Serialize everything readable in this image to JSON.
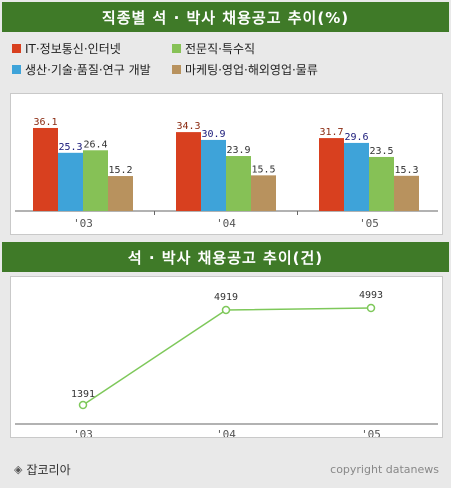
{
  "chart1": {
    "title": "직종별 석 · 박사 채용공고 추이(%)"
  },
  "chart2": {
    "title": "석 · 박사 채용공고 추이(건)"
  },
  "footer": {
    "left": "잡코리아",
    "right": "copyright datanews"
  },
  "colors": {
    "green_banner": "#3f7a28",
    "it": "#d8401f",
    "research": "#3ea3d9",
    "professional": "#86c156",
    "marketing": "#b8925e",
    "line": "#7ec85a"
  },
  "chart_data": [
    {
      "type": "bar",
      "title": "직종별 석 · 박사 채용공고 추이(%)",
      "categories": [
        "'03",
        "'04",
        "'05"
      ],
      "series": [
        {
          "name": "IT·정보통신·인터넷",
          "color": "#d8401f",
          "values": [
            36.1,
            34.3,
            31.7
          ]
        },
        {
          "name": "생산·기술·품질·연구 개발",
          "color": "#3ea3d9",
          "values": [
            25.3,
            30.9,
            29.6
          ]
        },
        {
          "name": "전문직·특수직",
          "color": "#86c156",
          "values": [
            26.4,
            23.9,
            23.5
          ]
        },
        {
          "name": "마케팅·영업·해외영업·물류",
          "color": "#b8925e",
          "values": [
            15.2,
            15.5,
            15.3
          ]
        }
      ],
      "legend_order": [
        0,
        2,
        1,
        3
      ],
      "ylim": [
        0,
        40
      ],
      "legend_position": "top",
      "grid": false
    },
    {
      "type": "line",
      "title": "석 · 박사 채용공고 추이(건)",
      "categories": [
        "'03",
        "'04",
        "'05"
      ],
      "series": [
        {
          "values": [
            1391,
            4919,
            4993
          ]
        }
      ],
      "ylim": [
        0,
        5500
      ],
      "grid": false
    }
  ]
}
